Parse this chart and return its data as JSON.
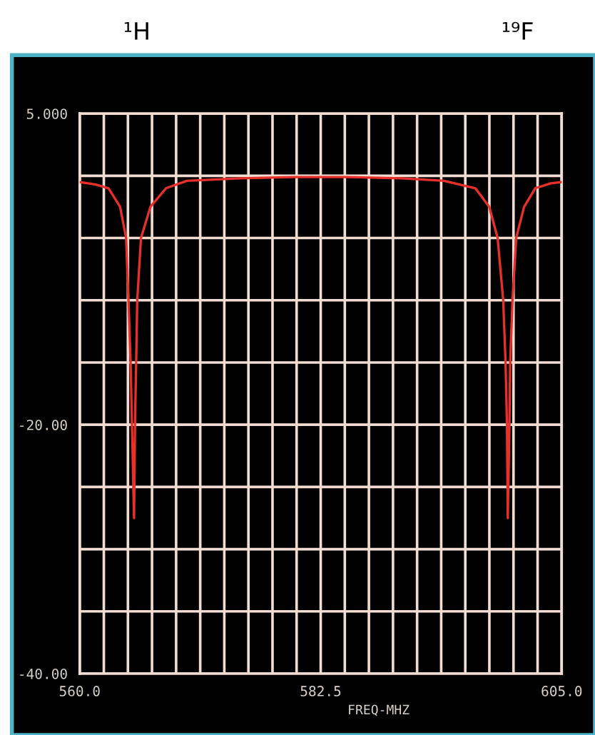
{
  "chart_data": {
    "type": "line",
    "xlabel": "FREQ-MHZ",
    "annotations": [
      "¹H",
      "¹⁹F"
    ],
    "series": [
      {
        "color": "#e8302a",
        "x": [
          560.0,
          561.5,
          562.69,
          563.77,
          564.33,
          564.55,
          564.75,
          564.88,
          565.07,
          565.16,
          565.27,
          565.37,
          565.72,
          566.6,
          568.06,
          570.0,
          575.0,
          580.0,
          585.0,
          590.0,
          594.0,
          596.94,
          598.24,
          599.02,
          599.54,
          599.76,
          599.89,
          599.97,
          600.12,
          600.19,
          600.41,
          600.75,
          601.49,
          602.53,
          604.0,
          605.0
        ],
        "values": [
          -0.5,
          -0.7,
          -1,
          -2.5,
          -5,
          -10,
          -15,
          -20,
          -27.5,
          -20,
          -15,
          -10,
          -5,
          -2.5,
          -1,
          -0.4,
          -0.2,
          -0.1,
          -0.1,
          -0.2,
          -0.4,
          -1,
          -2.5,
          -5,
          -10,
          -15,
          -20,
          -27.5,
          -20,
          -15,
          -10,
          -5,
          -2.5,
          -1,
          -0.6,
          -0.5
        ]
      }
    ],
    "xlim": [
      560,
      605
    ],
    "ylim": [
      -40,
      5
    ],
    "xticks": [
      {
        "value": 560,
        "label": "560.0"
      },
      {
        "value": 562.25,
        "label": null
      },
      {
        "value": 564.5,
        "label": null
      },
      {
        "value": 566.75,
        "label": null
      },
      {
        "value": 569,
        "label": null
      },
      {
        "value": 571.25,
        "label": null
      },
      {
        "value": 573.5,
        "label": null
      },
      {
        "value": 575.75,
        "label": null
      },
      {
        "value": 578,
        "label": null
      },
      {
        "value": 580.25,
        "label": null
      },
      {
        "value": 582.5,
        "label": "582.5"
      },
      {
        "value": 584.75,
        "label": null
      },
      {
        "value": 587,
        "label": null
      },
      {
        "value": 589.25,
        "label": null
      },
      {
        "value": 591.5,
        "label": null
      },
      {
        "value": 593.75,
        "label": null
      },
      {
        "value": 596,
        "label": null
      },
      {
        "value": 598.25,
        "label": null
      },
      {
        "value": 600.5,
        "label": null
      },
      {
        "value": 602.75,
        "label": null
      },
      {
        "value": 605,
        "label": "605.0"
      }
    ],
    "yticks": [
      {
        "value": 5,
        "label": "5.000"
      },
      {
        "value": 0,
        "label": null
      },
      {
        "value": -5,
        "label": null
      },
      {
        "value": -10,
        "label": null
      },
      {
        "value": -15,
        "label": null
      },
      {
        "value": -20,
        "label": "-20.00"
      },
      {
        "value": -25,
        "label": null
      },
      {
        "value": -30,
        "label": null
      },
      {
        "value": -35,
        "label": null
      },
      {
        "value": -40,
        "label": "-40.00"
      }
    ],
    "grid": true,
    "legend": false
  }
}
